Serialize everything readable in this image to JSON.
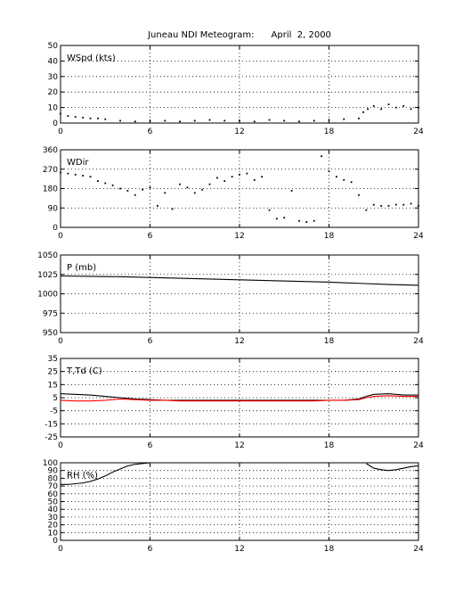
{
  "figure": {
    "title": "Juneau NDI Meteogram:      April  2, 2000"
  },
  "chart_data": [
    {
      "type": "scatter",
      "panel_label": "WSpd (kts)",
      "xlim": [
        0,
        24
      ],
      "ylim": [
        0,
        50
      ],
      "x_ticks": [
        "0",
        "6",
        "12",
        "18",
        "24"
      ],
      "y_ticks": [
        "0",
        "10",
        "20",
        "30",
        "40",
        "50"
      ],
      "grid": true,
      "series": [
        {
          "color": "#000000",
          "x": [
            0,
            0.5,
            1,
            1.5,
            2,
            2.5,
            3,
            4,
            5,
            6,
            7,
            8,
            9,
            10,
            11,
            12,
            13,
            14,
            15,
            16,
            17,
            18,
            19,
            20,
            20.3,
            20.6,
            21,
            21.5,
            22,
            22.5,
            23,
            23.5,
            24
          ],
          "y": [
            6,
            4.5,
            4,
            3.5,
            3,
            3,
            2.5,
            1.5,
            1,
            1.5,
            1.5,
            1,
            1.5,
            2,
            1.5,
            1.5,
            1,
            2,
            1.5,
            1,
            1.5,
            2,
            2.5,
            3,
            7,
            9,
            11,
            9,
            12,
            10,
            11,
            9,
            10
          ]
        }
      ]
    },
    {
      "type": "scatter",
      "panel_label": "WDir",
      "xlim": [
        0,
        24
      ],
      "ylim": [
        0,
        360
      ],
      "x_ticks": [
        "0",
        "6",
        "12",
        "18",
        "24"
      ],
      "y_ticks": [
        "0",
        "90",
        "180",
        "270",
        "360"
      ],
      "grid": true,
      "series": [
        {
          "color": "#000000",
          "x": [
            0,
            0.5,
            1,
            1.5,
            2,
            2.5,
            3,
            3.5,
            4,
            4.5,
            5,
            5.5,
            6,
            6.5,
            7,
            7.5,
            8,
            8.5,
            9,
            9.5,
            10,
            10.5,
            11,
            11.5,
            12,
            12.5,
            13,
            13.5,
            14,
            14.5,
            15,
            15.5,
            16,
            16.5,
            17,
            17.5,
            18,
            18.5,
            19,
            19.5,
            20,
            20.5,
            21,
            21.5,
            22,
            22.5,
            23,
            23.5,
            24
          ],
          "y": [
            255,
            250,
            245,
            240,
            235,
            215,
            205,
            195,
            180,
            170,
            150,
            175,
            185,
            100,
            160,
            85,
            200,
            185,
            160,
            175,
            200,
            230,
            215,
            235,
            245,
            250,
            220,
            235,
            80,
            40,
            45,
            170,
            30,
            25,
            30,
            330,
            260,
            235,
            220,
            210,
            150,
            80,
            105,
            100,
            100,
            105,
            105,
            110,
            100
          ]
        }
      ]
    },
    {
      "type": "line",
      "panel_label": "P (mb)",
      "xlim": [
        0,
        24
      ],
      "ylim": [
        950,
        1050
      ],
      "x_ticks": [
        "0",
        "6",
        "12",
        "18",
        "24"
      ],
      "y_ticks": [
        "950",
        "975",
        "1000",
        "1025",
        "1050"
      ],
      "grid": true,
      "series": [
        {
          "color": "#000000",
          "x": [
            0,
            2,
            4,
            6,
            8,
            10,
            12,
            14,
            16,
            18,
            20,
            22,
            24
          ],
          "y": [
            1023,
            1022.5,
            1022,
            1021,
            1020,
            1019,
            1018,
            1017,
            1016,
            1015,
            1013.5,
            1012,
            1011
          ]
        }
      ]
    },
    {
      "type": "line",
      "panel_label": "T,Td (C)",
      "xlim": [
        0,
        24
      ],
      "ylim": [
        -25,
        35
      ],
      "x_ticks": [
        "0",
        "6",
        "12",
        "18",
        "24"
      ],
      "y_ticks": [
        "-25",
        "-15",
        "-5",
        "5",
        "15",
        "25",
        "35"
      ],
      "grid": true,
      "series": [
        {
          "color": "#000000",
          "x": [
            0,
            1,
            2,
            3,
            4,
            5,
            6,
            7,
            8,
            9,
            10,
            11,
            12,
            13,
            14,
            15,
            16,
            17,
            18,
            19,
            20,
            20.5,
            21,
            22,
            23,
            24
          ],
          "y": [
            8,
            7.5,
            7,
            6,
            5,
            4,
            3.5,
            3,
            3,
            3,
            3,
            3,
            3,
            3,
            3,
            3,
            3,
            3,
            3,
            3,
            4,
            6,
            7.5,
            8,
            7,
            7
          ]
        },
        {
          "color": "#ff0000",
          "x": [
            0,
            1,
            2,
            3,
            4,
            5,
            6,
            7,
            8,
            9,
            10,
            11,
            12,
            13,
            14,
            15,
            16,
            17,
            18,
            19,
            20,
            20.5,
            21,
            22,
            23,
            24
          ],
          "y": [
            3,
            2.5,
            2.5,
            3,
            4,
            3.5,
            3,
            3,
            2.5,
            2.5,
            2.5,
            2.5,
            2.5,
            2.5,
            2.5,
            2.5,
            2.5,
            2.5,
            3,
            3,
            3.5,
            5,
            6,
            6.5,
            6,
            6
          ]
        }
      ]
    },
    {
      "type": "line",
      "panel_label": "RH (%)",
      "xlim": [
        0,
        24
      ],
      "ylim": [
        0,
        100
      ],
      "x_ticks": [
        "0",
        "6",
        "12",
        "18",
        "24"
      ],
      "y_ticks": [
        "0",
        "10",
        "20",
        "30",
        "40",
        "50",
        "60",
        "70",
        "80",
        "90",
        "100"
      ],
      "grid": true,
      "series": [
        {
          "color": "#000000",
          "segments": [
            {
              "x": [
                0,
                0.5,
                1,
                1.5,
                2,
                2.5,
                3,
                3.5,
                4,
                4.5,
                5,
                5.5,
                6,
                7,
                8,
                8.5
              ],
              "y": [
                72,
                72,
                73,
                74,
                76,
                79,
                83,
                88,
                92,
                96,
                98,
                99,
                100,
                100,
                100,
                100
              ]
            },
            {
              "x": [
                20.5,
                21,
                21.5,
                22,
                22.5,
                23,
                23.5,
                24
              ],
              "y": [
                99,
                93,
                91,
                90,
                91,
                93,
                95,
                96
              ]
            }
          ]
        }
      ]
    }
  ]
}
